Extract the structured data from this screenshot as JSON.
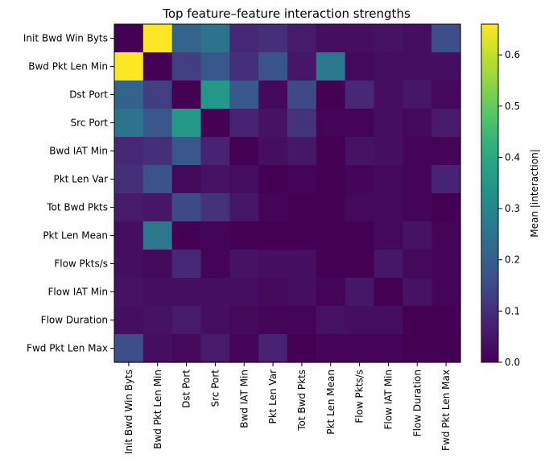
{
  "chart_data": {
    "type": "heatmap",
    "title": "Top feature–feature interaction strengths",
    "labels": [
      "Init Bwd Win Byts",
      "Bwd Pkt Len Min",
      "Dst Port",
      "Src Port",
      "Bwd IAT Min",
      "Pkt Len Var",
      "Tot Bwd Pkts",
      "Pkt Len Mean",
      "Flow Pkts/s",
      "Flow IAT Min",
      "Flow Duration",
      "Fwd Pkt Len Max"
    ],
    "values": [
      [
        0.0,
        0.66,
        0.21,
        0.25,
        0.09,
        0.1,
        0.06,
        0.03,
        0.03,
        0.04,
        0.03,
        0.16
      ],
      [
        0.66,
        0.0,
        0.13,
        0.18,
        0.1,
        0.17,
        0.05,
        0.26,
        0.02,
        0.03,
        0.03,
        0.03
      ],
      [
        0.21,
        0.13,
        0.0,
        0.35,
        0.18,
        0.02,
        0.15,
        0.0,
        0.09,
        0.03,
        0.05,
        0.02
      ],
      [
        0.25,
        0.18,
        0.35,
        0.0,
        0.08,
        0.04,
        0.11,
        0.01,
        0.01,
        0.03,
        0.02,
        0.06
      ],
      [
        0.09,
        0.1,
        0.18,
        0.08,
        0.0,
        0.03,
        0.05,
        0.0,
        0.04,
        0.03,
        0.01,
        0.01
      ],
      [
        0.1,
        0.17,
        0.02,
        0.04,
        0.03,
        0.0,
        0.01,
        0.0,
        0.01,
        0.02,
        0.01,
        0.08
      ],
      [
        0.06,
        0.05,
        0.15,
        0.11,
        0.05,
        0.01,
        0.0,
        0.0,
        0.02,
        0.02,
        0.01,
        0.0
      ],
      [
        0.03,
        0.26,
        0.0,
        0.01,
        0.0,
        0.0,
        0.0,
        0.0,
        0.0,
        0.02,
        0.04,
        0.01
      ],
      [
        0.03,
        0.02,
        0.09,
        0.01,
        0.04,
        0.03,
        0.03,
        0.0,
        0.0,
        0.05,
        0.02,
        0.01
      ],
      [
        0.04,
        0.03,
        0.03,
        0.03,
        0.03,
        0.02,
        0.03,
        0.01,
        0.05,
        0.0,
        0.04,
        0.01
      ],
      [
        0.03,
        0.04,
        0.06,
        0.03,
        0.02,
        0.01,
        0.01,
        0.04,
        0.03,
        0.03,
        0.0,
        0.0
      ],
      [
        0.16,
        0.03,
        0.02,
        0.06,
        0.01,
        0.08,
        0.0,
        0.01,
        0.01,
        0.01,
        0.0,
        0.0
      ]
    ],
    "colormap": "viridis",
    "colorbar": {
      "label": "Mean |interaction|",
      "range": [
        0,
        0.66
      ],
      "ticks": [
        "0.0",
        "0.1",
        "0.2",
        "0.3",
        "0.4",
        "0.5",
        "0.6"
      ],
      "tick_values": [
        0.0,
        0.1,
        0.2,
        0.3,
        0.4,
        0.5,
        0.6
      ]
    },
    "grid": false
  }
}
